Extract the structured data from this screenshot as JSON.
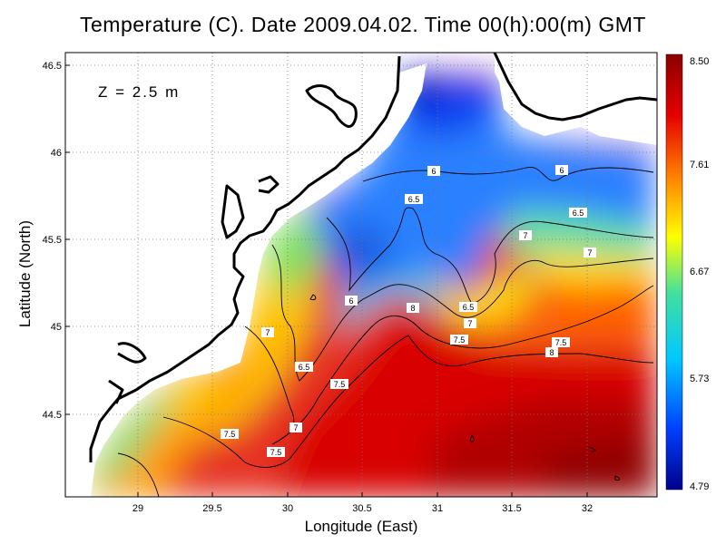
{
  "title": "Temperature (C). Date 2009.04.02. Time 00(h):00(m) GMT",
  "depth_label": "Z = 2.5 m",
  "x_axis_label": "Longitude (East)",
  "y_axis_label": "Latitude (North)",
  "x_ticks": [
    "29",
    "29.5",
    "30",
    "30.5",
    "31",
    "31.5",
    "32"
  ],
  "y_ticks": [
    "44.5",
    "45",
    "45.5",
    "46",
    "46.5"
  ],
  "colorbar": {
    "labels": [
      "8.50",
      "7.61",
      "6.67",
      "5.73",
      "4.79"
    ],
    "min": 4.79,
    "max": 8.5,
    "colors": [
      "#00008b",
      "#0040ff",
      "#00c8ff",
      "#40e0a0",
      "#ffff00",
      "#ff8000",
      "#e60000",
      "#8b0000"
    ]
  },
  "chart_data": {
    "type": "heatmap",
    "title": "Temperature (C). Date 2009.04.02. Time 00(h):00(m) GMT",
    "xlabel": "Longitude (East)",
    "ylabel": "Latitude (North)",
    "xlim": [
      28.5,
      32.45
    ],
    "ylim": [
      44.05,
      46.55
    ],
    "grid": true,
    "contour_labels": [
      "6",
      "6",
      "6",
      "6.5",
      "6.5",
      "6.5",
      "6.5",
      "7",
      "7",
      "7",
      "7",
      "7",
      "7.5",
      "7.5",
      "7.5",
      "7.5",
      "7.5",
      "8",
      "8"
    ],
    "colorbar_range": [
      4.79,
      8.5
    ],
    "depth": "Z = 2.5 m"
  }
}
